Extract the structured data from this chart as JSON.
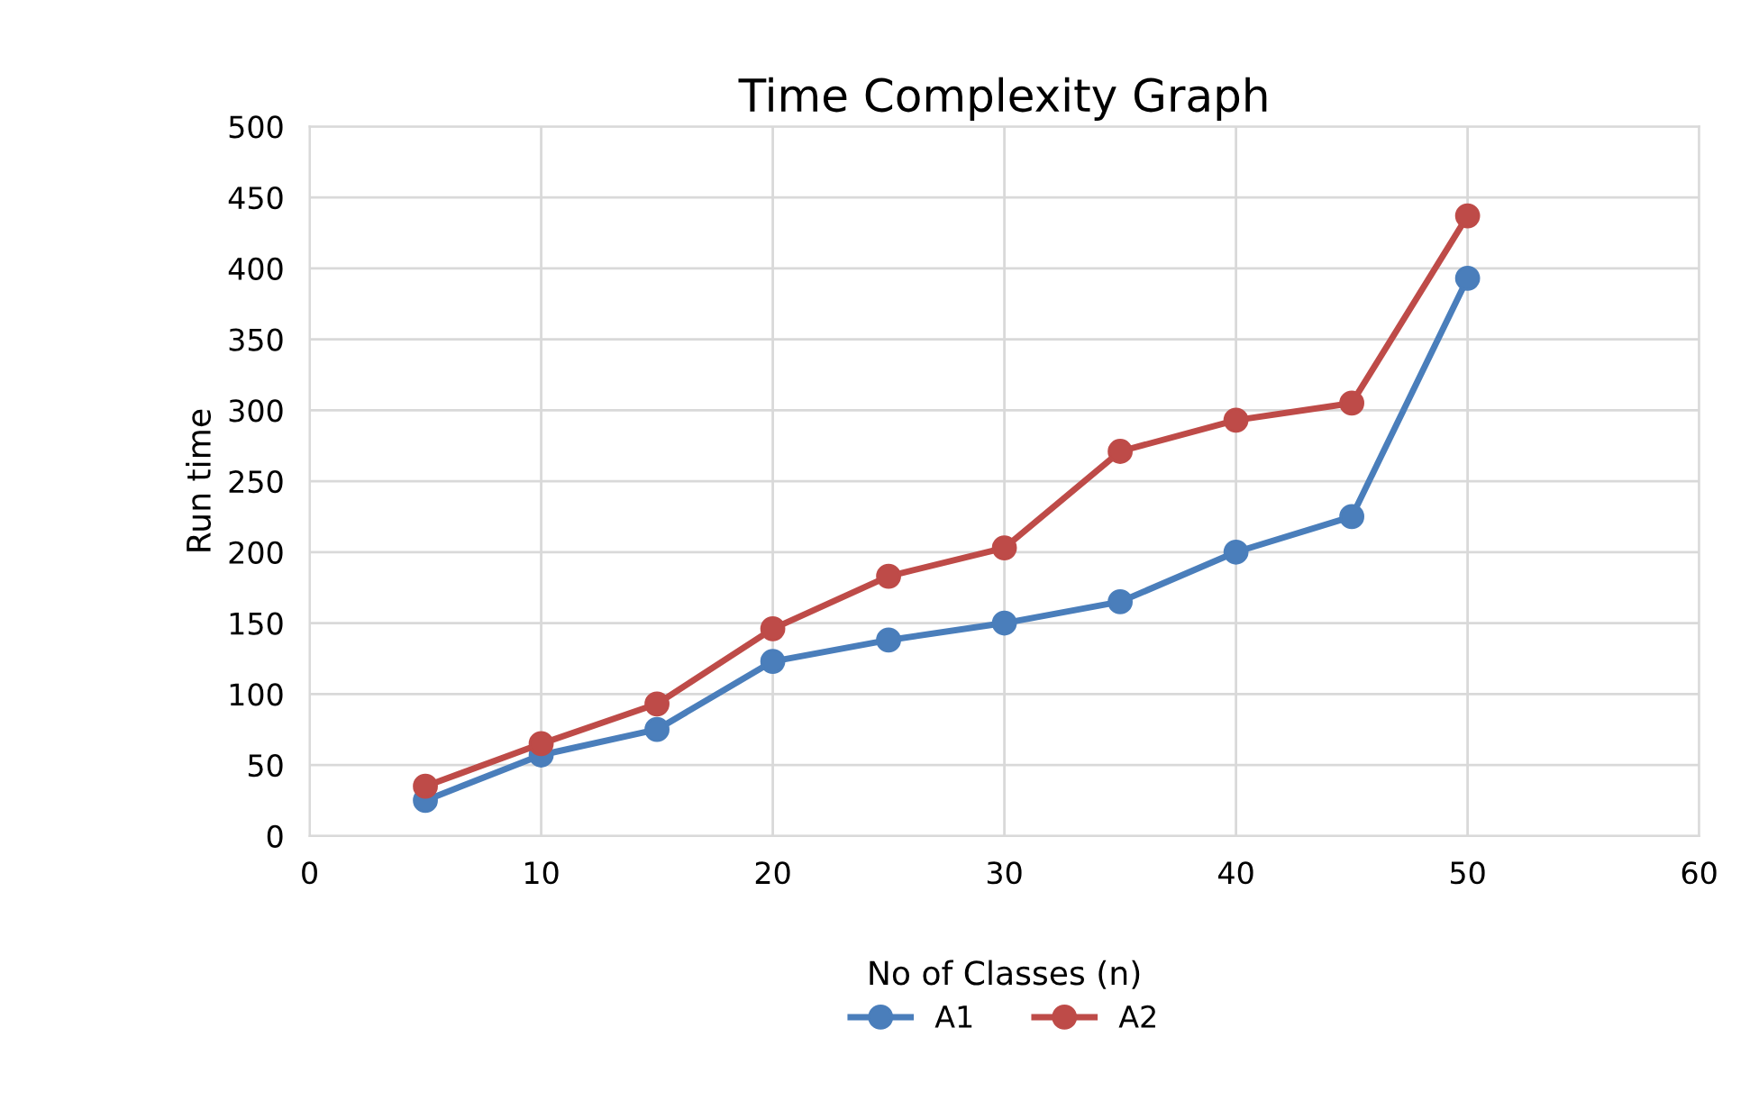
{
  "chart_data": {
    "type": "line",
    "title": "Time Complexity Graph",
    "xlabel": "No of Classes (n)",
    "ylabel": "Run time",
    "x": [
      5,
      10,
      15,
      20,
      25,
      30,
      35,
      40,
      45,
      50
    ],
    "series": [
      {
        "name": "A1",
        "color": "#4a7ebb",
        "values": [
          25,
          57,
          75,
          123,
          138,
          150,
          165,
          200,
          225,
          393
        ]
      },
      {
        "name": "A2",
        "color": "#be4b48",
        "values": [
          35,
          65,
          93,
          146,
          183,
          203,
          271,
          293,
          305,
          437
        ]
      }
    ],
    "xlim": [
      0,
      60
    ],
    "xticks": [
      0,
      10,
      20,
      30,
      40,
      50,
      60
    ],
    "ylim": [
      0,
      500
    ],
    "yticks": [
      0,
      50,
      100,
      150,
      200,
      250,
      300,
      350,
      400,
      450,
      500
    ],
    "grid": true,
    "legend": "bottom",
    "marker": "circle",
    "line_style": "solid"
  }
}
